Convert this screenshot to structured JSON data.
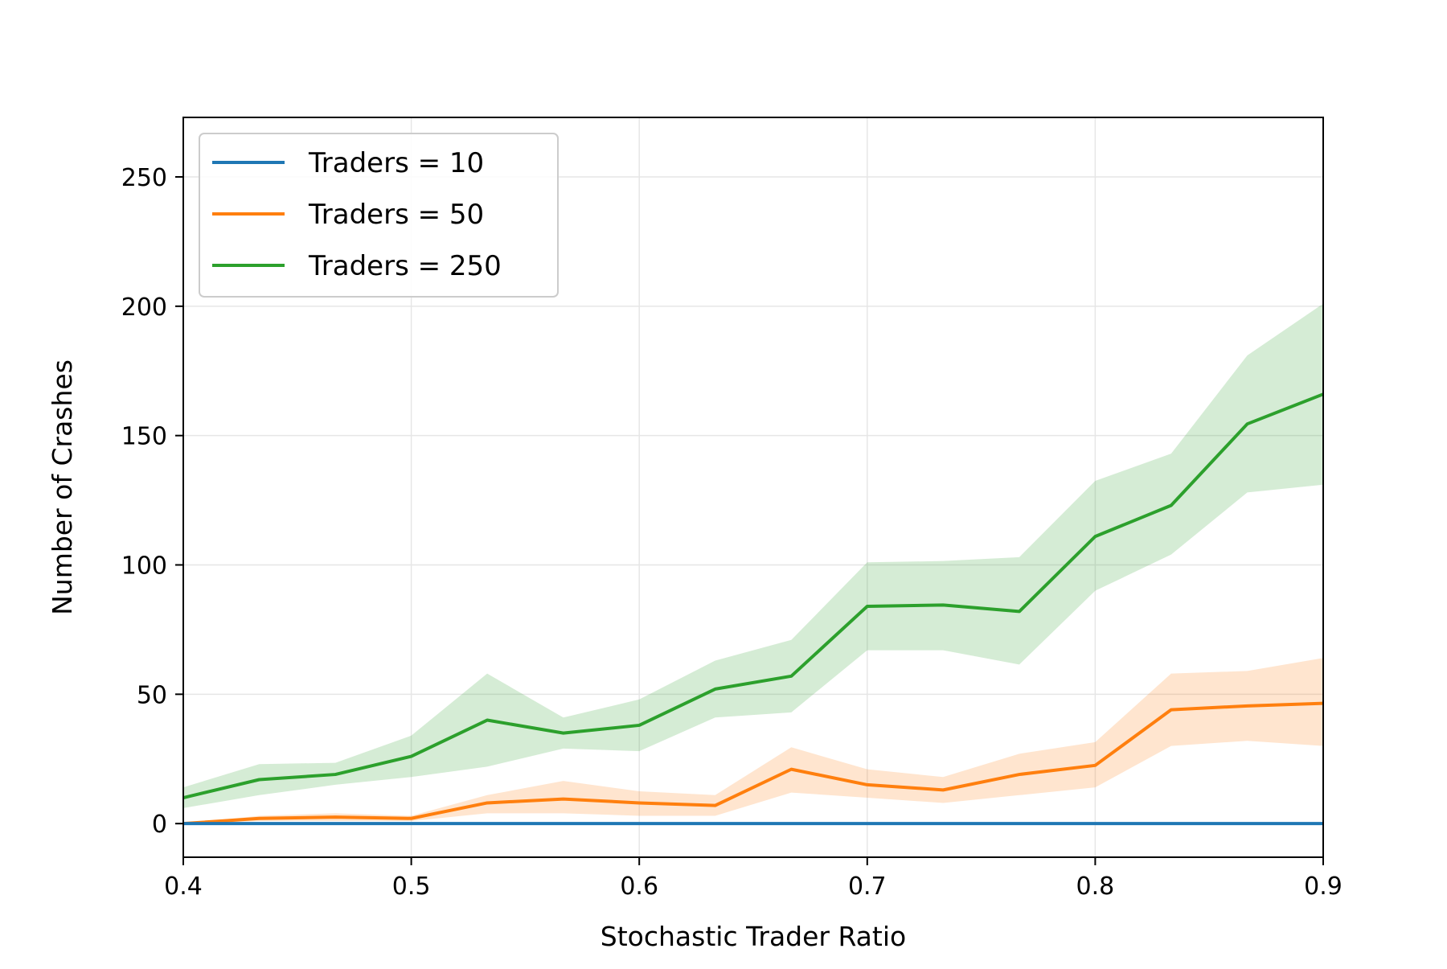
{
  "chart_data": {
    "type": "line",
    "title": "",
    "xlabel": "Stochastic Trader Ratio",
    "ylabel": "Number of Crashes",
    "xlim": [
      0.4,
      0.9
    ],
    "ylim": [
      -13,
      273
    ],
    "xticks": [
      0.4,
      0.5,
      0.6,
      0.7,
      0.8,
      0.9
    ],
    "xtick_labels": [
      "0.4",
      "0.5",
      "0.6",
      "0.7",
      "0.8",
      "0.9"
    ],
    "yticks": [
      0,
      50,
      100,
      150,
      200,
      250
    ],
    "ytick_labels": [
      "0",
      "50",
      "100",
      "150",
      "200",
      "250"
    ],
    "grid": true,
    "legend_position": "top-left",
    "x": [
      0.4,
      0.4333,
      0.4667,
      0.5,
      0.5333,
      0.5667,
      0.6,
      0.6333,
      0.6667,
      0.7,
      0.7333,
      0.7667,
      0.8,
      0.8333,
      0.8667,
      0.9
    ],
    "series": [
      {
        "name": "Traders = 10",
        "color": "#1f77b4",
        "values": [
          0,
          0,
          0,
          0,
          0,
          0,
          0,
          0,
          0,
          0,
          0,
          0,
          0,
          0,
          0,
          0
        ],
        "lower": [
          0,
          0,
          0,
          0,
          0,
          0,
          0,
          0,
          0,
          0,
          0,
          0,
          0,
          0,
          0,
          0
        ],
        "upper": [
          0,
          0,
          0,
          0,
          0,
          0,
          0,
          0,
          0,
          0,
          0,
          0,
          0,
          0,
          0,
          0
        ]
      },
      {
        "name": "Traders = 50",
        "color": "#ff7f0e",
        "values": [
          0,
          2,
          2.5,
          2,
          8,
          9.5,
          8,
          7,
          21,
          15,
          13,
          19,
          22.5,
          44,
          45.5,
          46.5
        ],
        "lower": [
          0,
          1,
          1,
          1,
          4,
          4,
          3,
          3,
          12,
          10,
          8,
          11,
          14,
          30,
          32,
          30
        ],
        "upper": [
          0,
          3,
          4,
          3,
          11,
          16.5,
          12.5,
          11,
          29.5,
          21,
          18,
          27,
          31.5,
          58,
          59,
          64
        ]
      },
      {
        "name": "Traders = 250",
        "color": "#2ca02c",
        "values": [
          10,
          17,
          19,
          26,
          40,
          35,
          38,
          52,
          57,
          84,
          84.5,
          82,
          111,
          123,
          154.5,
          166
        ],
        "lower": [
          6,
          11,
          15,
          18,
          22,
          29,
          28,
          41,
          43,
          67,
          67,
          61.5,
          90,
          104,
          128,
          131
        ],
        "upper": [
          14,
          23,
          23.5,
          34,
          58,
          41,
          48,
          63,
          71,
          101,
          101.5,
          103,
          132.5,
          143,
          181,
          201
        ]
      }
    ]
  }
}
